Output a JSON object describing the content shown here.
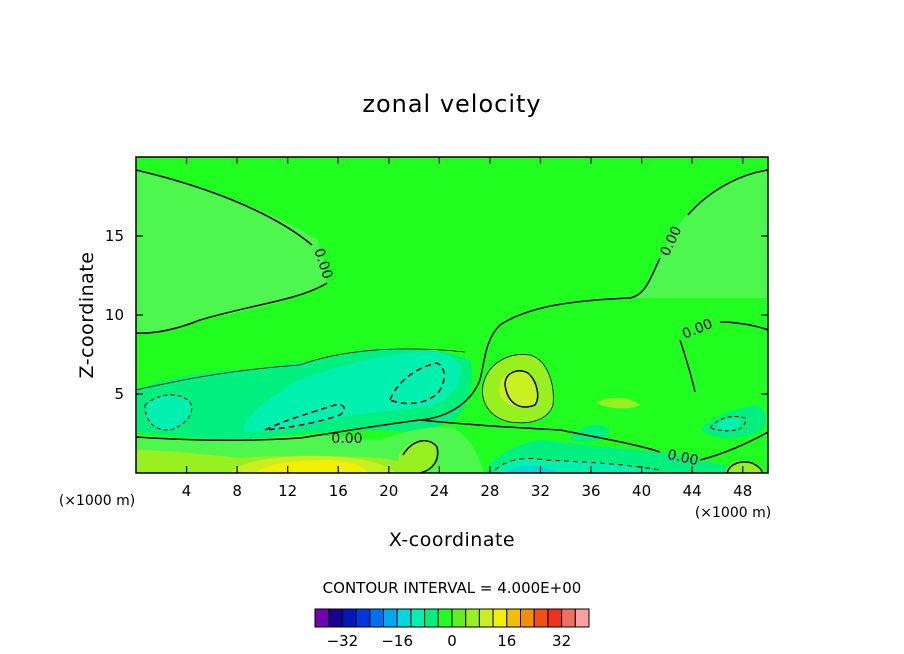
{
  "chart_data": {
    "type": "contour",
    "title": "zonal velocity",
    "xlabel": "X-coordinate",
    "ylabel": "Z-coordinate",
    "x_unit": "(×1000 m)",
    "y_unit": "(×1000 m)",
    "xlim": [
      0,
      50
    ],
    "ylim": [
      0,
      20
    ],
    "x_ticks": [
      "4",
      "8",
      "12",
      "16",
      "20",
      "24",
      "28",
      "32",
      "36",
      "40",
      "44",
      "48"
    ],
    "x_tick_values": [
      4,
      8,
      12,
      16,
      20,
      24,
      28,
      32,
      36,
      40,
      44,
      48
    ],
    "y_ticks": [
      "5",
      "10",
      "15"
    ],
    "y_tick_values": [
      5,
      10,
      15
    ],
    "contour_interval_text": "CONTOUR INTERVAL = 4.000E+00",
    "contour_interval": 4,
    "contour_label": "0.00",
    "colorbar": {
      "levels": [
        -36,
        -32,
        -28,
        -24,
        -20,
        -16,
        -12,
        -8,
        -4,
        0,
        4,
        8,
        12,
        16,
        20,
        24,
        28,
        32,
        36
      ],
      "colors": [
        "#7000b0",
        "#1a0090",
        "#0018b8",
        "#0038e0",
        "#0070f0",
        "#00a8f0",
        "#00d8e0",
        "#00f0b0",
        "#00f080",
        "#20ff20",
        "#60f020",
        "#98f020",
        "#c8f020",
        "#f0f000",
        "#f0c000",
        "#f09000",
        "#f05010",
        "#f03020",
        "#f07060",
        "#f8a0a0"
      ],
      "tick_labels": [
        "-32",
        "-16",
        "0",
        "16",
        "32"
      ],
      "tick_values": [
        -32,
        -16,
        0,
        16,
        32
      ]
    },
    "colors": {
      "background_field": "#20ff20",
      "zero_contour_band": "#4ef74e",
      "negative_weak": "#00f080",
      "negative_strong": "#00f0b0",
      "positive_weak": "#98f020",
      "positive_strong": "#f0f000"
    }
  }
}
